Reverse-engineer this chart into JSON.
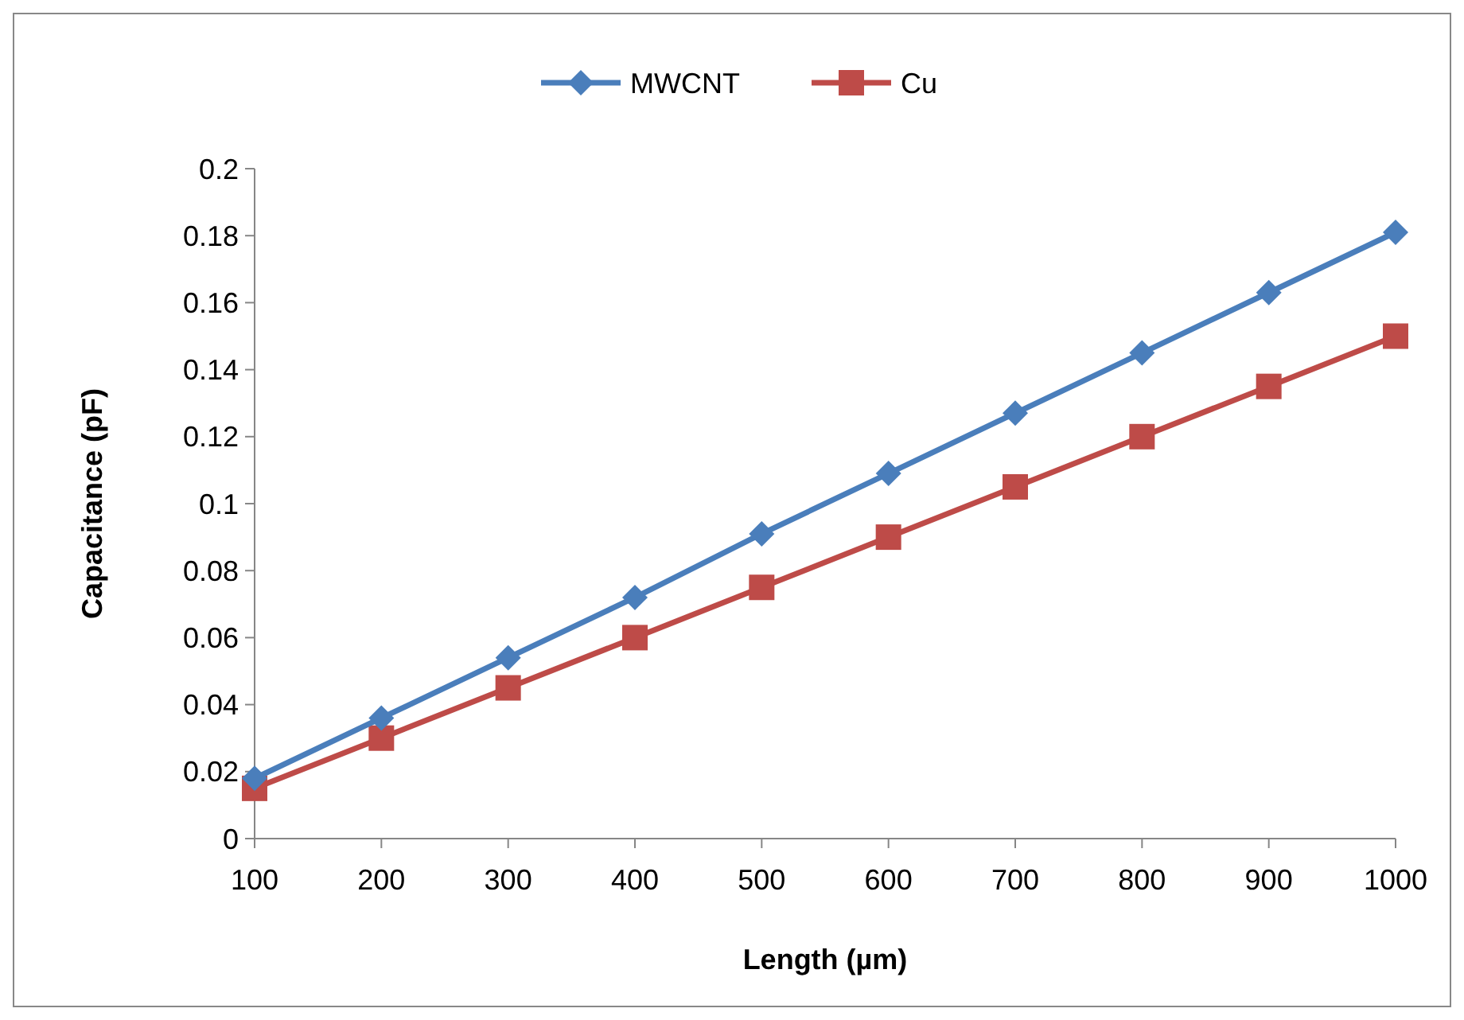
{
  "chart_data": {
    "type": "line",
    "xlabel": "Length (µm)",
    "ylabel": "Capacitance (pF)",
    "x": [
      100,
      200,
      300,
      400,
      500,
      600,
      700,
      800,
      900,
      1000
    ],
    "xlim": [
      100,
      1000
    ],
    "xticks": [
      100,
      200,
      300,
      400,
      500,
      600,
      700,
      800,
      900,
      1000
    ],
    "ylim": [
      0,
      0.2
    ],
    "yticks": [
      0,
      0.02,
      0.04,
      0.06,
      0.08,
      0.1,
      0.12,
      0.14,
      0.16,
      0.18,
      0.2
    ],
    "grid": false,
    "legend": "top",
    "line_style": "solid",
    "series": [
      {
        "name": "MWCNT",
        "color": "#4a7ebb",
        "marker": "diamond",
        "values": [
          0.018,
          0.036,
          0.054,
          0.072,
          0.091,
          0.109,
          0.127,
          0.145,
          0.163,
          0.181
        ]
      },
      {
        "name": "Cu",
        "color": "#be4b48",
        "marker": "square",
        "values": [
          0.015,
          0.03,
          0.045,
          0.06,
          0.075,
          0.09,
          0.105,
          0.12,
          0.135,
          0.15
        ]
      }
    ]
  }
}
